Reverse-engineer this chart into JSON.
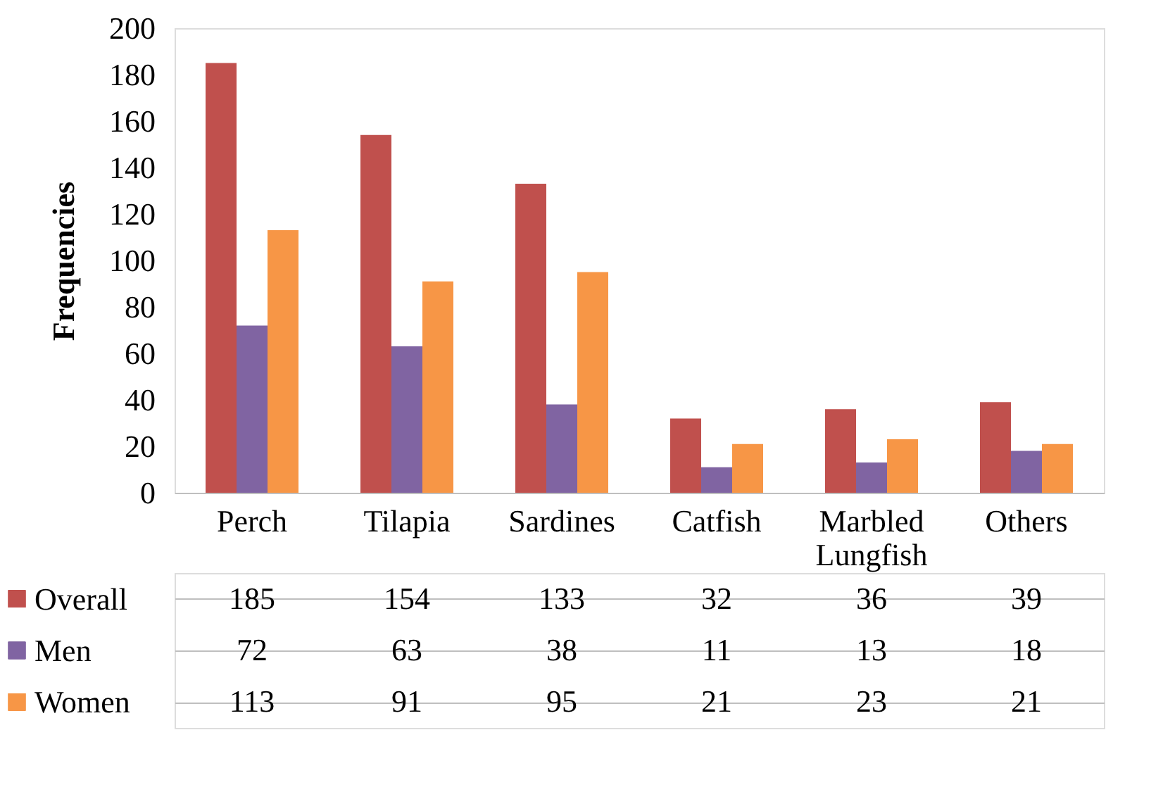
{
  "chart_data": {
    "type": "bar",
    "ylabel": "Frequencies",
    "categories": [
      "Perch",
      "Tilapia",
      "Sardines",
      "Catfish",
      "Marbled Lungfish",
      "Others"
    ],
    "series": [
      {
        "name": "Overall",
        "color": "#c0504d",
        "values": [
          185,
          154,
          133,
          32,
          36,
          39
        ]
      },
      {
        "name": "Men",
        "color": "#8064a2",
        "values": [
          72,
          63,
          38,
          11,
          13,
          18
        ]
      },
      {
        "name": "Women",
        "color": "#f79646",
        "values": [
          113,
          91,
          95,
          21,
          23,
          21
        ]
      }
    ],
    "ylim": [
      0,
      200
    ],
    "yticks": [
      0,
      20,
      40,
      60,
      80,
      100,
      120,
      140,
      160,
      180,
      200
    ],
    "grid": false,
    "data_labels": true,
    "legend": "bottom left"
  }
}
